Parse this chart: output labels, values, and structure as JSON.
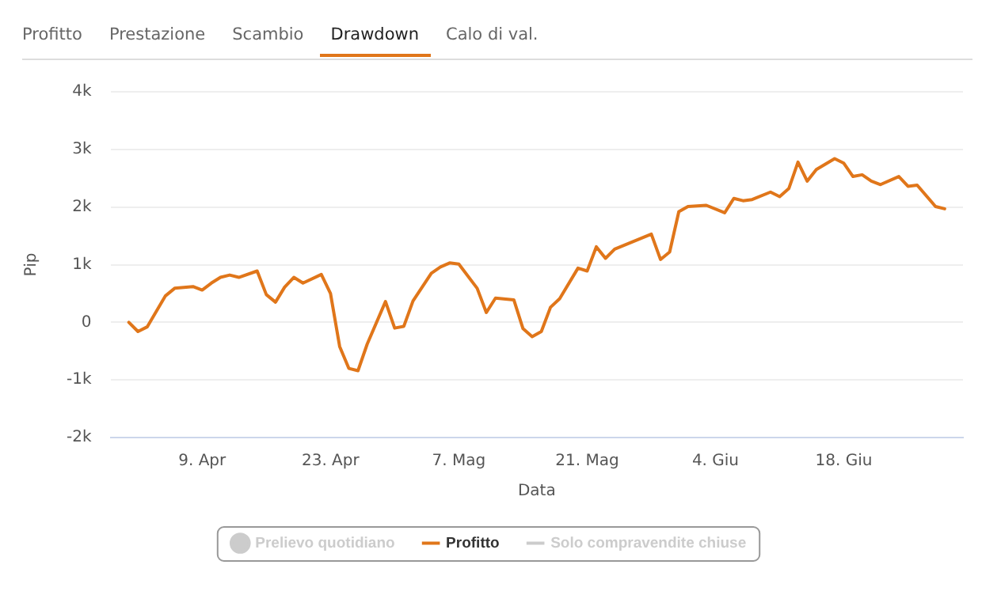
{
  "chart_data": {
    "type": "line",
    "xlabel": "Data",
    "ylabel": "Pip",
    "annotations": [
      "Profitto",
      "Prestazione",
      "Scambio",
      "Drawdown",
      "Calo di val."
    ],
    "legend": "bottom",
    "grid": "y",
    "marker": "none",
    "line_style": "solid",
    "xlim": [
      "--03-30",
      "--07-01"
    ],
    "xticks": [
      {
        "value": "--04-09",
        "label": "9. Apr"
      },
      {
        "value": "--04-23",
        "label": "23. Apr"
      },
      {
        "value": "--05-07",
        "label": "7. Mag"
      },
      {
        "value": "--05-21",
        "label": "21. Mag"
      },
      {
        "value": "--06-04",
        "label": "4. Giu"
      },
      {
        "value": "--06-18",
        "label": "18. Giu"
      }
    ],
    "ylim": [
      -2000,
      4000
    ],
    "yticks": [
      {
        "value": -2000,
        "label": "-2k"
      },
      {
        "value": -1000,
        "label": "-1k"
      },
      0,
      {
        "value": 1000,
        "label": "1k"
      },
      {
        "value": 2000,
        "label": "2k"
      },
      {
        "value": 3000,
        "label": "3k"
      },
      {
        "value": 4000,
        "label": "4k"
      }
    ],
    "series": [
      {
        "name": "Prelievo quotidiano",
        "type": "scatter",
        "marker": "circle",
        "color": "#cccccc"
      },
      {
        "name": "Profitto",
        "type": "line",
        "color": "#e0761a",
        "x": [
          "--04-01",
          "--04-02",
          "--04-03",
          "--04-04",
          "--04-05",
          "--04-06",
          "--04-08",
          "--04-09",
          "--04-10",
          "--04-11",
          "--04-12",
          "--04-13",
          "--04-15",
          "--04-16",
          "--04-17",
          "--04-18",
          "--04-19",
          "--04-20",
          "--04-22",
          "--04-23",
          "--04-24",
          "--04-25",
          "--04-26",
          "--04-27",
          "--04-29",
          "--04-30",
          "--05-01",
          "--05-02",
          "--05-04",
          "--05-05",
          "--05-06",
          "--05-07",
          "--05-09",
          "--05-10",
          "--05-11",
          "--05-13",
          "--05-14",
          "--05-15",
          "--05-16",
          "--05-17",
          "--05-18",
          "--05-20",
          "--05-21",
          "--05-22",
          "--05-23",
          "--05-24",
          "--05-28",
          "--05-29",
          "--05-30",
          "--05-31",
          "--06-01",
          "--06-03",
          "--06-05",
          "--06-06",
          "--06-07",
          "--06-08",
          "--06-10",
          "--06-11",
          "--06-12",
          "--06-13",
          "--06-14",
          "--06-15",
          "--06-17",
          "--06-18",
          "--06-19",
          "--06-20",
          "--06-21",
          "--06-22",
          "--06-24",
          "--06-25",
          "--06-26",
          "--06-28",
          "--06-29"
        ],
        "values": [
          0,
          -160,
          -80,
          190,
          460,
          590,
          620,
          560,
          680,
          780,
          820,
          780,
          890,
          480,
          350,
          610,
          780,
          680,
          830,
          500,
          -420,
          -800,
          -840,
          -380,
          360,
          -100,
          -70,
          370,
          850,
          960,
          1030,
          1010,
          590,
          170,
          420,
          390,
          -110,
          -250,
          -160,
          260,
          410,
          940,
          890,
          1310,
          1110,
          1270,
          1530,
          1090,
          1220,
          1920,
          2010,
          2030,
          1900,
          2150,
          2110,
          2130,
          2260,
          2180,
          2320,
          2780,
          2450,
          2650,
          2840,
          2760,
          2530,
          2560,
          2450,
          2390,
          2530,
          2360,
          2380,
          2010,
          1970
        ]
      },
      {
        "name": "Solo compravendite chiuse",
        "type": "line",
        "color": "#cccccc"
      }
    ]
  }
}
